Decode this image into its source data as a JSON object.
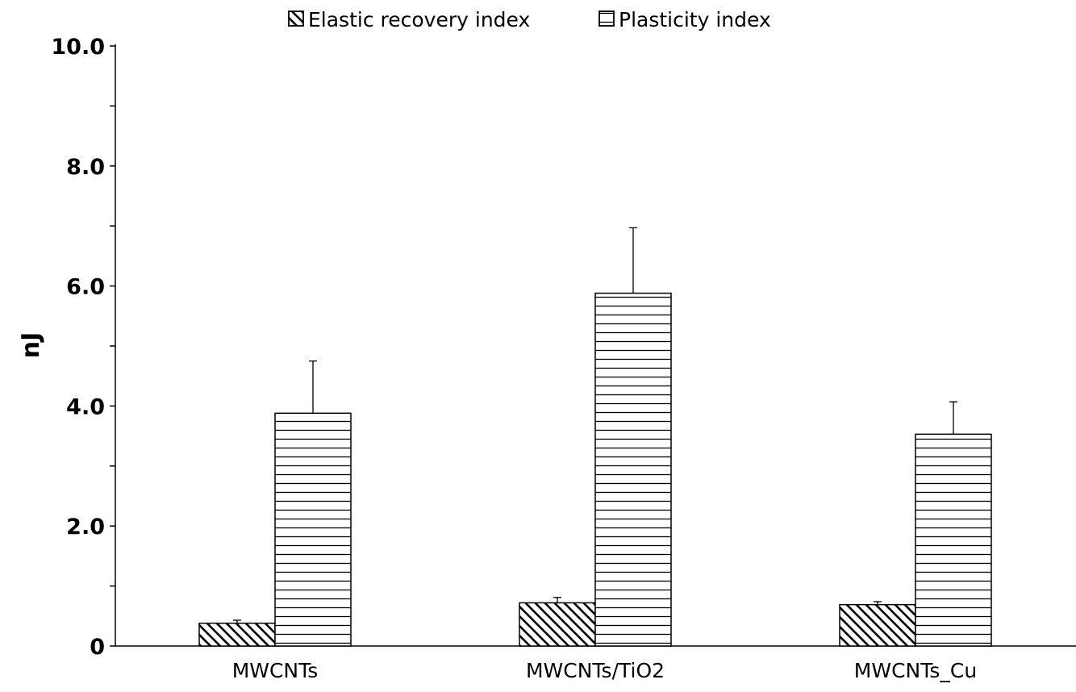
{
  "chart_data": {
    "type": "bar",
    "categories": [
      "MWCNTs",
      "MWCNTs/TiO2",
      "MWCNTs_Cu"
    ],
    "series": [
      {
        "name": "Elastic recovery index",
        "pattern": "diagonal-hatch",
        "values": [
          0.38,
          0.72,
          0.69
        ],
        "error": [
          0.05,
          0.09,
          0.05
        ]
      },
      {
        "name": "Plasticity index",
        "pattern": "horizontal-hatch",
        "values": [
          3.88,
          5.88,
          3.53
        ],
        "error": [
          0.87,
          1.09,
          0.54
        ]
      }
    ],
    "xlabel": "",
    "ylabel": "nJ",
    "ylim": [
      0,
      10
    ],
    "yticks": [
      "0",
      "2.0",
      "4.0",
      "6.0",
      "8.0",
      "10.0"
    ],
    "ytick_values": [
      0,
      2,
      4,
      6,
      8,
      10
    ],
    "minor_tick_step": 1,
    "grid": false,
    "legend_position": "top-center",
    "colors": {
      "bar_fill": "#ffffff",
      "stroke": "#000000"
    }
  }
}
